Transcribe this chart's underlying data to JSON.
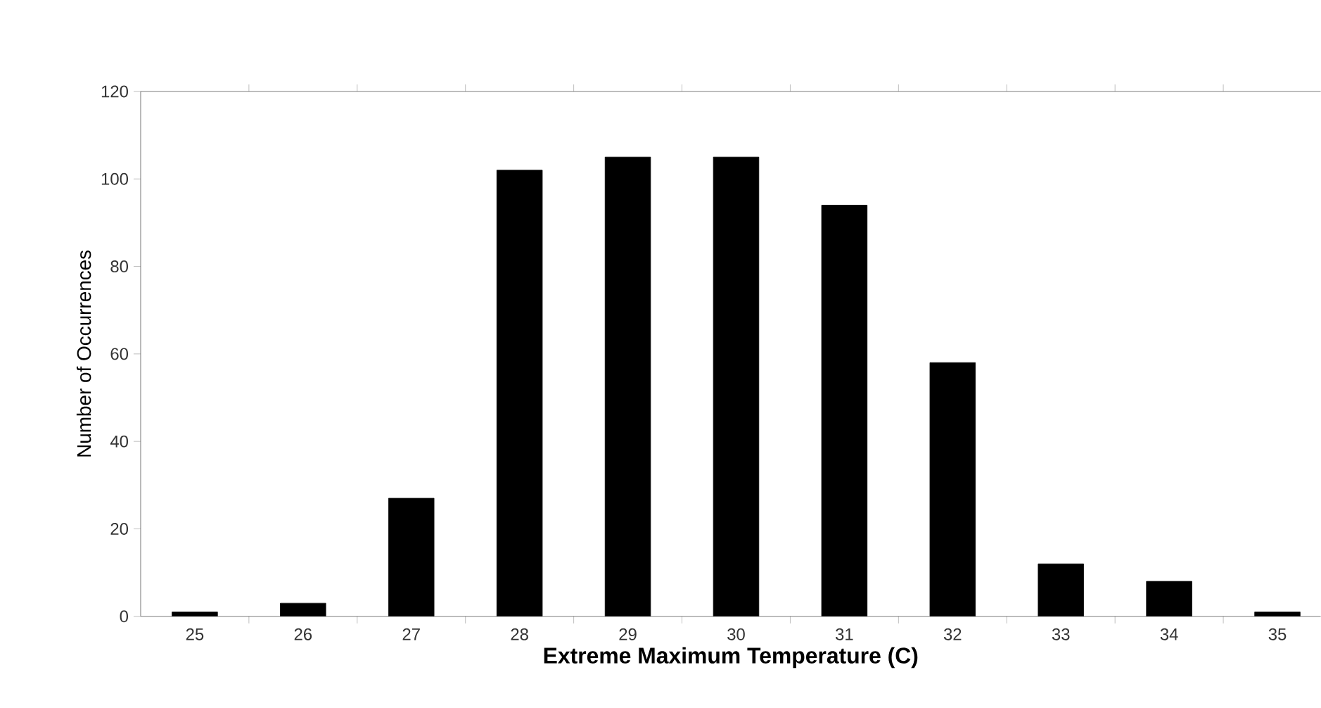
{
  "chart_data": {
    "type": "bar",
    "xlabel": "**Extreme Maximum Temperature (C)**",
    "ylabel": "Number of Occurrences",
    "categories": [
      "25",
      "26",
      "27",
      "28",
      "29",
      "30",
      "31",
      "32",
      "33",
      "34",
      "35"
    ],
    "values": [
      1,
      3,
      27,
      102,
      105,
      105,
      94,
      58,
      12,
      8,
      1
    ],
    "color": "#000000",
    "ylim": [
      0,
      120
    ],
    "yticks": [
      0,
      20,
      40,
      60,
      80,
      100,
      120
    ]
  }
}
